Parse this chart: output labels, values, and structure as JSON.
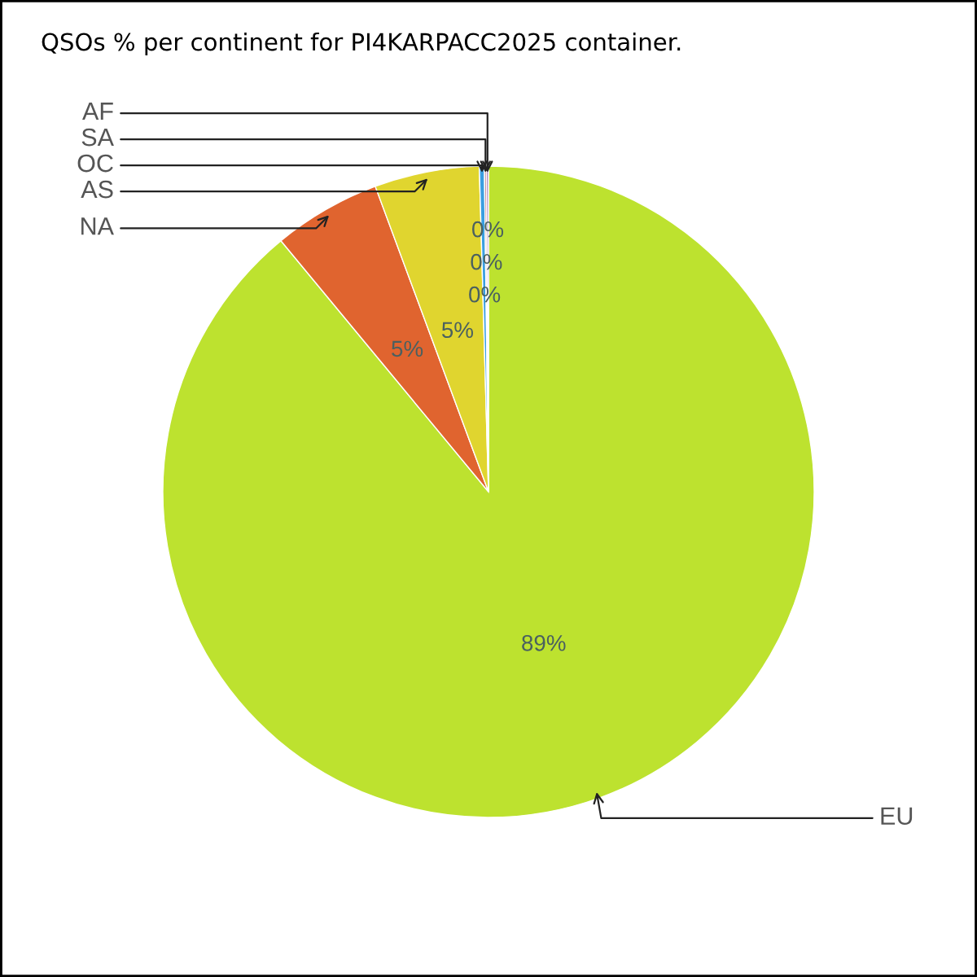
{
  "chart_data": {
    "type": "pie",
    "title": "QSOs % per continent for PI4KARPACC2025 container.",
    "categories": [
      "EU",
      "NA",
      "AS",
      "OC",
      "SA",
      "AF"
    ],
    "values": [
      89,
      5.35,
      5.2,
      0.25,
      0.1,
      0.1
    ],
    "colors": [
      "#bde22f",
      "#e0642f",
      "#e0d52f",
      "#3a9ee0",
      "#c08a9a",
      "#9a6fb0"
    ],
    "value_labels": [
      "89%",
      "5%",
      "5%",
      "0%",
      "0%",
      "0%"
    ]
  }
}
